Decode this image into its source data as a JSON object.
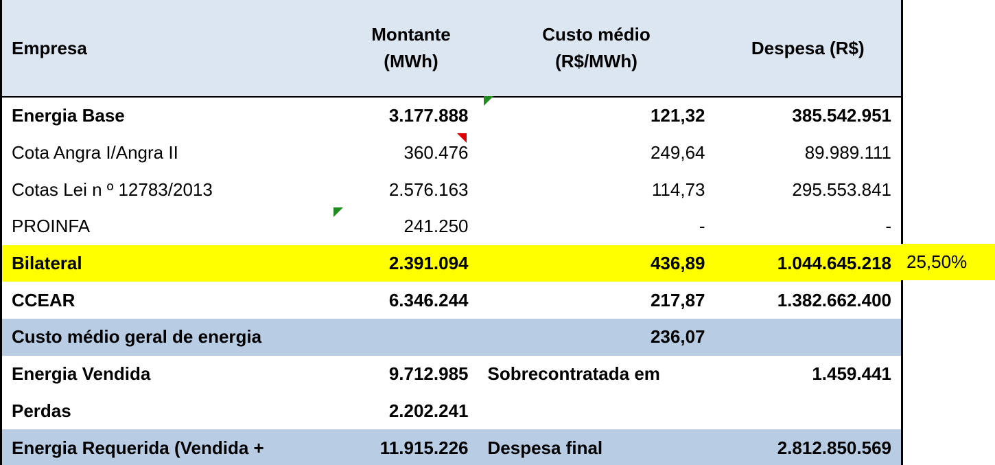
{
  "header": [
    "Empresa",
    "Montante\n(MWh)",
    "Custo médio\n(R$/MWh)",
    "Despesa (R$)"
  ],
  "rows": [
    {
      "cells": [
        "Energia Base",
        "3.177.888",
        "121,32",
        "385.542.951"
      ],
      "bold": true
    },
    {
      "cells": [
        "Cota Angra I/Angra II",
        "360.476",
        "249,64",
        "89.989.111"
      ]
    },
    {
      "cells": [
        "Cotas Lei n º 12783/2013",
        "2.576.163",
        "114,73",
        "295.553.841"
      ]
    },
    {
      "cells": [
        "PROINFA",
        "241.250",
        "-",
        "-"
      ]
    },
    {
      "cells": [
        "Bilateral",
        "2.391.094",
        "436,89",
        "1.044.645.218"
      ],
      "bold": true,
      "fill": "#ffff00"
    },
    {
      "cells": [
        "CCEAR",
        "6.346.244",
        "217,87",
        "1.382.662.400"
      ],
      "bold": true
    },
    {
      "cells": [
        "Custo médio geral de energia",
        null,
        "236,07",
        null
      ],
      "bold": true,
      "fill": "#b8cce4"
    },
    {
      "cells": [
        "Energia Vendida",
        "9.712.985",
        "Sobrecontratada em",
        "1.459.441"
      ],
      "bold": true
    },
    {
      "cells": [
        "Perdas",
        "2.202.241",
        null,
        null
      ],
      "bold": true
    },
    {
      "cells": [
        "Energia Requerida (Vendida +",
        "11.915.226",
        "Despesa final",
        "2.812.850.569"
      ],
      "bold": true,
      "fill": "#b8cce4"
    }
  ],
  "side_note": {
    "row": 4,
    "text": "25,50%",
    "fill": "#ffff00"
  }
}
